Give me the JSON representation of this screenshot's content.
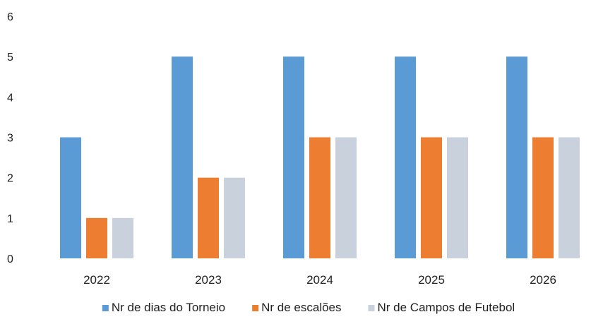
{
  "chart_data": {
    "type": "bar",
    "categories": [
      "2022",
      "2023",
      "2024",
      "2025",
      "2026"
    ],
    "series": [
      {
        "name": "Nr de dias do Torneio",
        "values": [
          3,
          5,
          5,
          5,
          5
        ],
        "color": "#5b9bd5"
      },
      {
        "name": "Nr de escalões",
        "values": [
          1,
          2,
          3,
          3,
          3
        ],
        "color": "#ed7d31"
      },
      {
        "name": "Nr de Campos de Futebol",
        "values": [
          1,
          2,
          3,
          3,
          3
        ],
        "color": "#c9d1dd"
      }
    ],
    "ylim": [
      0,
      6
    ],
    "yticks": [
      0,
      1,
      2,
      3,
      4,
      5,
      6
    ],
    "grid": false,
    "legend_position": "bottom"
  }
}
